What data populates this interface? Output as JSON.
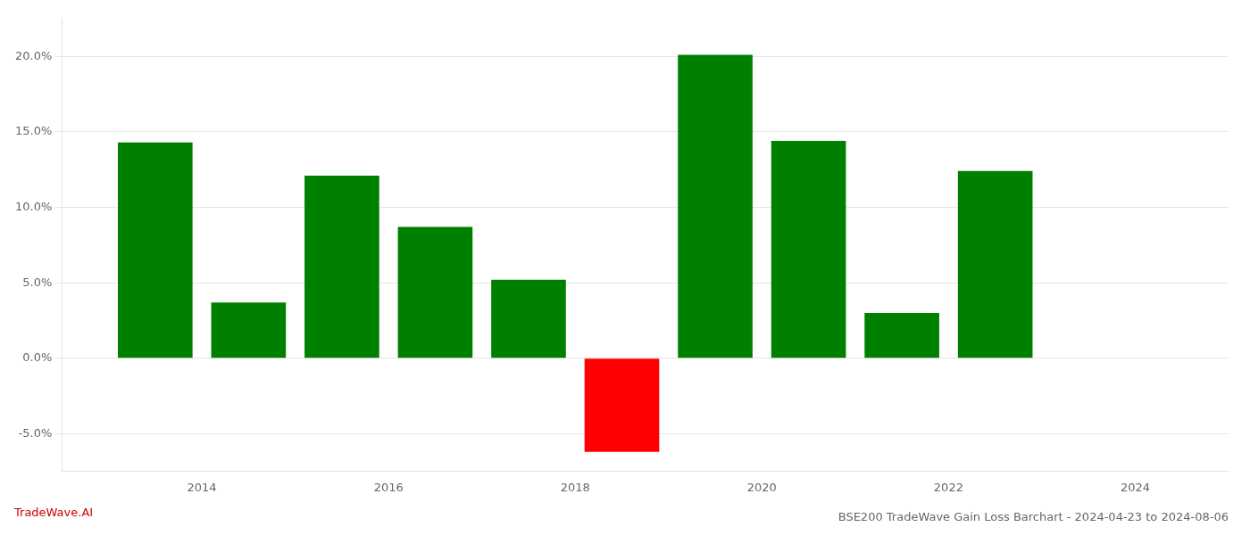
{
  "chart_data": {
    "type": "bar",
    "title": "BSE200 TradeWave Gain Loss Barchart - 2024-04-23 to 2024-08-06",
    "annotations": [
      {
        "text": "TradeWave.AI",
        "color": "#cc0000"
      }
    ],
    "x": [
      2013.5,
      2014.5,
      2015.5,
      2016.5,
      2017.5,
      2018.5,
      2019.5,
      2020.5,
      2021.5,
      2022.5
    ],
    "values": [
      14.3,
      3.7,
      12.1,
      8.7,
      5.2,
      -6.2,
      20.1,
      14.4,
      3.0,
      12.4
    ],
    "colors": [
      "#008000",
      "#008000",
      "#008000",
      "#008000",
      "#008000",
      "#ff0000",
      "#008000",
      "#008000",
      "#008000",
      "#008000"
    ],
    "xlim": [
      2012.5,
      2025.0
    ],
    "ylim": [
      -7.5,
      22.5
    ],
    "xticks": [
      2014,
      2016,
      2018,
      2020,
      2022,
      2024
    ],
    "yticks": [
      {
        "value": -5.0,
        "label": "-5.0%"
      },
      {
        "value": 0.0,
        "label": "0.0%"
      },
      {
        "value": 5.0,
        "label": "5.0%"
      },
      {
        "value": 10.0,
        "label": "10.0%"
      },
      {
        "value": 15.0,
        "label": "15.0%"
      },
      {
        "value": 20.0,
        "label": "20.0%"
      }
    ],
    "grid": true
  }
}
